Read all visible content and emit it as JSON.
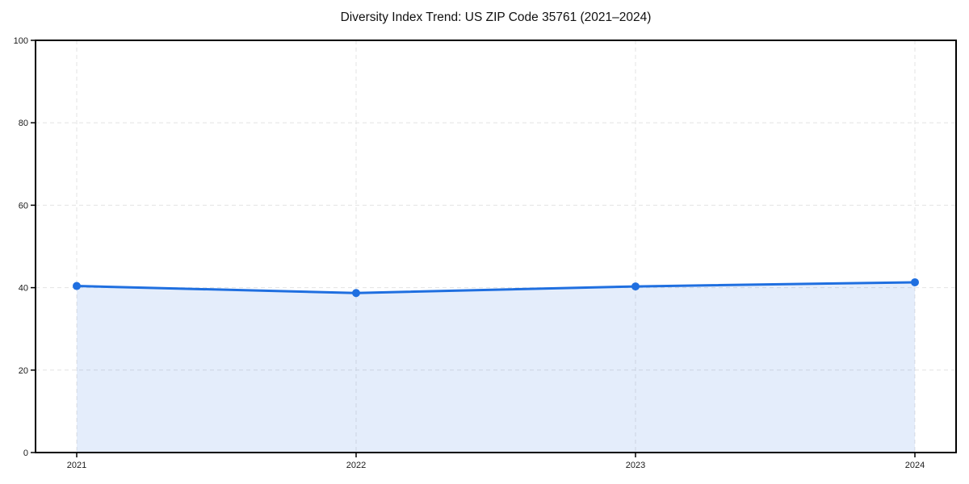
{
  "title": "Diversity Index Trend: US ZIP Code 35761 (2021–2024)",
  "colors": {
    "line": "#1f6fe0",
    "marker": "#1f6fe0",
    "fill": "#1f6fe0",
    "fill_opacity": 0.12,
    "grid": "#e3e3e3",
    "spine": "#000000",
    "tick_label": "#1a1a1a",
    "background": "#ffffff"
  },
  "chart_data": {
    "type": "area",
    "title": "Diversity Index Trend: US ZIP Code 35761 (2021–2024)",
    "categories": [
      "2021",
      "2022",
      "2023",
      "2024"
    ],
    "x": [
      2021,
      2022,
      2023,
      2024
    ],
    "series": [
      {
        "name": "Diversity Index",
        "values": [
          40.4,
          38.7,
          40.3,
          41.3
        ]
      }
    ],
    "xlabel": "",
    "ylabel": "",
    "ylim": [
      0,
      100
    ],
    "yticks": [
      0,
      20,
      40,
      60,
      80,
      100
    ],
    "grid": true,
    "grid_style": "dashed",
    "legend_position": "none",
    "marker": "circle",
    "line_width": 3
  }
}
